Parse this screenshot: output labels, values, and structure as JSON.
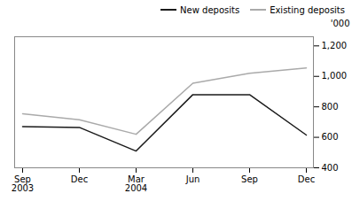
{
  "chart_data": {
    "type": "line",
    "categories": [
      "Sep\n2003",
      "Dec",
      "Mar\n2004",
      "Jun",
      "Sep",
      "Dec"
    ],
    "series": [
      {
        "name": "New deposits",
        "color": "#1a1a1a",
        "values": [
          670,
          665,
          510,
          880,
          880,
          615
        ]
      },
      {
        "name": "Existing deposits",
        "color": "#aaaaaa",
        "values": [
          755,
          715,
          620,
          955,
          1020,
          1055
        ]
      }
    ],
    "ylabel": "'000",
    "ylim": [
      400,
      1260
    ],
    "yticks": [
      400,
      600,
      800,
      1000,
      1200
    ],
    "grid": false,
    "legend": "upper right"
  }
}
